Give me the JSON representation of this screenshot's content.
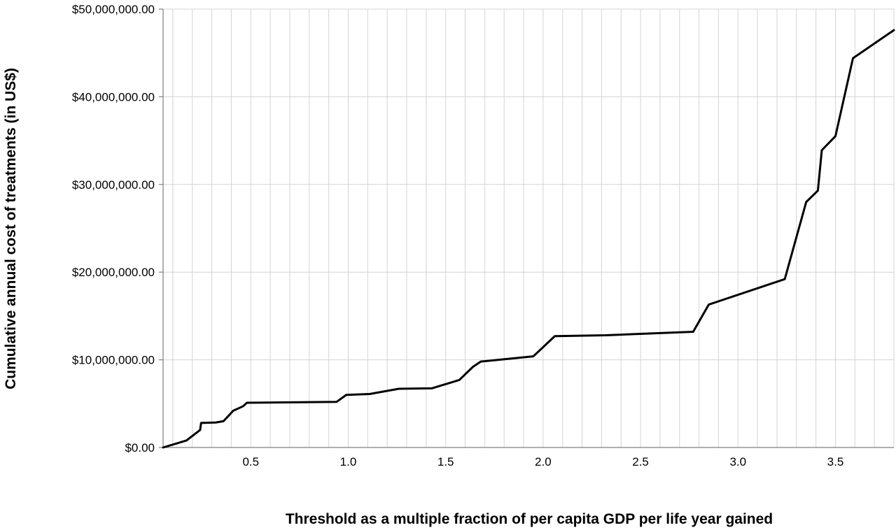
{
  "chart_data": {
    "type": "line",
    "title": "",
    "xlabel": "Threshold as a multiple fraction of per capita GDP per life year gained",
    "ylabel": "Cumulative annual cost of treatments (in US$)",
    "xlim": [
      0.05,
      3.8
    ],
    "ylim": [
      0,
      50000000
    ],
    "x_tick_values": [
      0.5,
      1.0,
      1.5,
      2.0,
      2.5,
      3.0,
      3.5
    ],
    "x_tick_labels": [
      "0.5",
      "1.0",
      "1.5",
      "2.0",
      "2.5",
      "3.0",
      "3.5"
    ],
    "y_tick_values": [
      0,
      10000000,
      20000000,
      30000000,
      40000000,
      50000000
    ],
    "y_tick_labels": [
      "$0.00",
      "$10,000,000.00",
      "$20,000,000.00",
      "$30,000,000.00",
      "$40,000,000.00",
      "$50,000,000.00"
    ],
    "x_minor_grid_step": 0.1,
    "grid": true,
    "legend": "none",
    "series": [
      {
        "color": "#000000",
        "points": [
          [
            0.05,
            0
          ],
          [
            0.17,
            800000
          ],
          [
            0.24,
            2000000
          ],
          [
            0.245,
            2800000
          ],
          [
            0.32,
            2850000
          ],
          [
            0.36,
            3000000
          ],
          [
            0.41,
            4200000
          ],
          [
            0.46,
            4700000
          ],
          [
            0.48,
            5100000
          ],
          [
            0.94,
            5200000
          ],
          [
            0.99,
            6000000
          ],
          [
            1.11,
            6100000
          ],
          [
            1.26,
            6700000
          ],
          [
            1.43,
            6750000
          ],
          [
            1.57,
            7700000
          ],
          [
            1.64,
            9200000
          ],
          [
            1.68,
            9800000
          ],
          [
            1.95,
            10400000
          ],
          [
            2.06,
            12700000
          ],
          [
            2.32,
            12800000
          ],
          [
            2.77,
            13200000
          ],
          [
            2.85,
            16300000
          ],
          [
            3.24,
            19200000
          ],
          [
            3.35,
            28000000
          ],
          [
            3.41,
            29300000
          ],
          [
            3.43,
            33900000
          ],
          [
            3.5,
            35500000
          ],
          [
            3.59,
            44400000
          ],
          [
            3.8,
            47600000
          ]
        ]
      }
    ]
  }
}
